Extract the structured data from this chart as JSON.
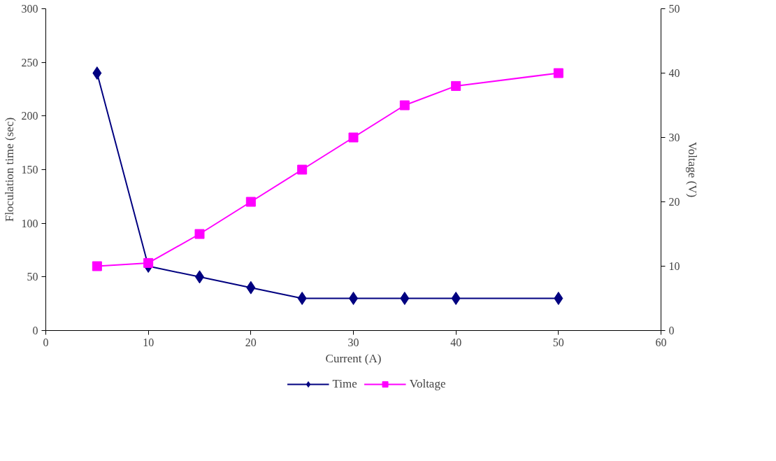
{
  "chart_data": {
    "type": "line",
    "xlabel": "Current (A)",
    "ylabel": "Floculation time (sec)",
    "y2label": "Voltage (V)",
    "x": [
      5,
      10,
      15,
      20,
      25,
      30,
      35,
      40,
      50
    ],
    "series": [
      {
        "name": "Time",
        "color": "#000080",
        "marker": "diamond",
        "values": [
          240,
          60,
          50,
          40,
          30,
          30,
          30,
          30,
          30
        ]
      },
      {
        "name": "Voltage",
        "color": "#ff00ff",
        "marker": "square",
        "axis": "y2",
        "values": [
          10,
          10.5,
          15,
          20,
          25,
          30,
          35,
          38,
          40
        ]
      }
    ],
    "xlim": [
      0,
      60
    ],
    "xticks": [
      0,
      10,
      20,
      30,
      40,
      50,
      60
    ],
    "ylim": [
      0,
      300
    ],
    "yticks": [
      0,
      50,
      100,
      150,
      200,
      250,
      300
    ],
    "y2lim": [
      0,
      50
    ],
    "y2ticks": [
      0,
      10,
      20,
      30,
      40,
      50
    ],
    "grid": false,
    "legend": "bottom"
  }
}
